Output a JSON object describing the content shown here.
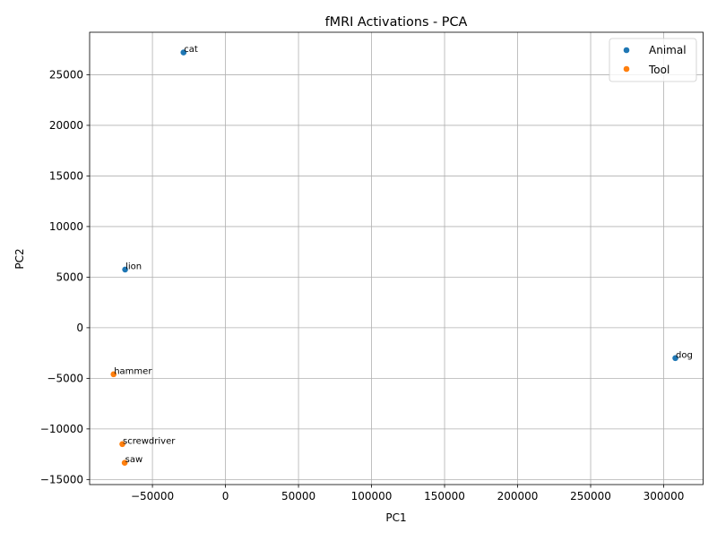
{
  "chart_data": {
    "type": "scatter",
    "title": "fMRI Activations - PCA",
    "xlabel": "PC1",
    "ylabel": "PC2",
    "xlim": [
      -93000,
      327000
    ],
    "ylim": [
      -15500,
      29200
    ],
    "xticks": [
      -50000,
      0,
      50000,
      100000,
      150000,
      200000,
      250000,
      300000
    ],
    "yticks": [
      -15000,
      -10000,
      -5000,
      0,
      5000,
      10000,
      15000,
      20000,
      25000
    ],
    "grid": true,
    "legend_position": "upper-right",
    "series": [
      {
        "name": "Animal",
        "color": "#1f77b4",
        "points": [
          {
            "label": "cat",
            "x": -28700,
            "y": 27200
          },
          {
            "label": "lion",
            "x": -68700,
            "y": 5750
          },
          {
            "label": "dog",
            "x": 308000,
            "y": -3000
          }
        ]
      },
      {
        "name": "Tool",
        "color": "#ff7f0e",
        "points": [
          {
            "label": "hammer",
            "x": -76600,
            "y": -4600
          },
          {
            "label": "screwdriver",
            "x": -70600,
            "y": -11500
          },
          {
            "label": "saw",
            "x": -69000,
            "y": -13350
          }
        ]
      }
    ]
  }
}
